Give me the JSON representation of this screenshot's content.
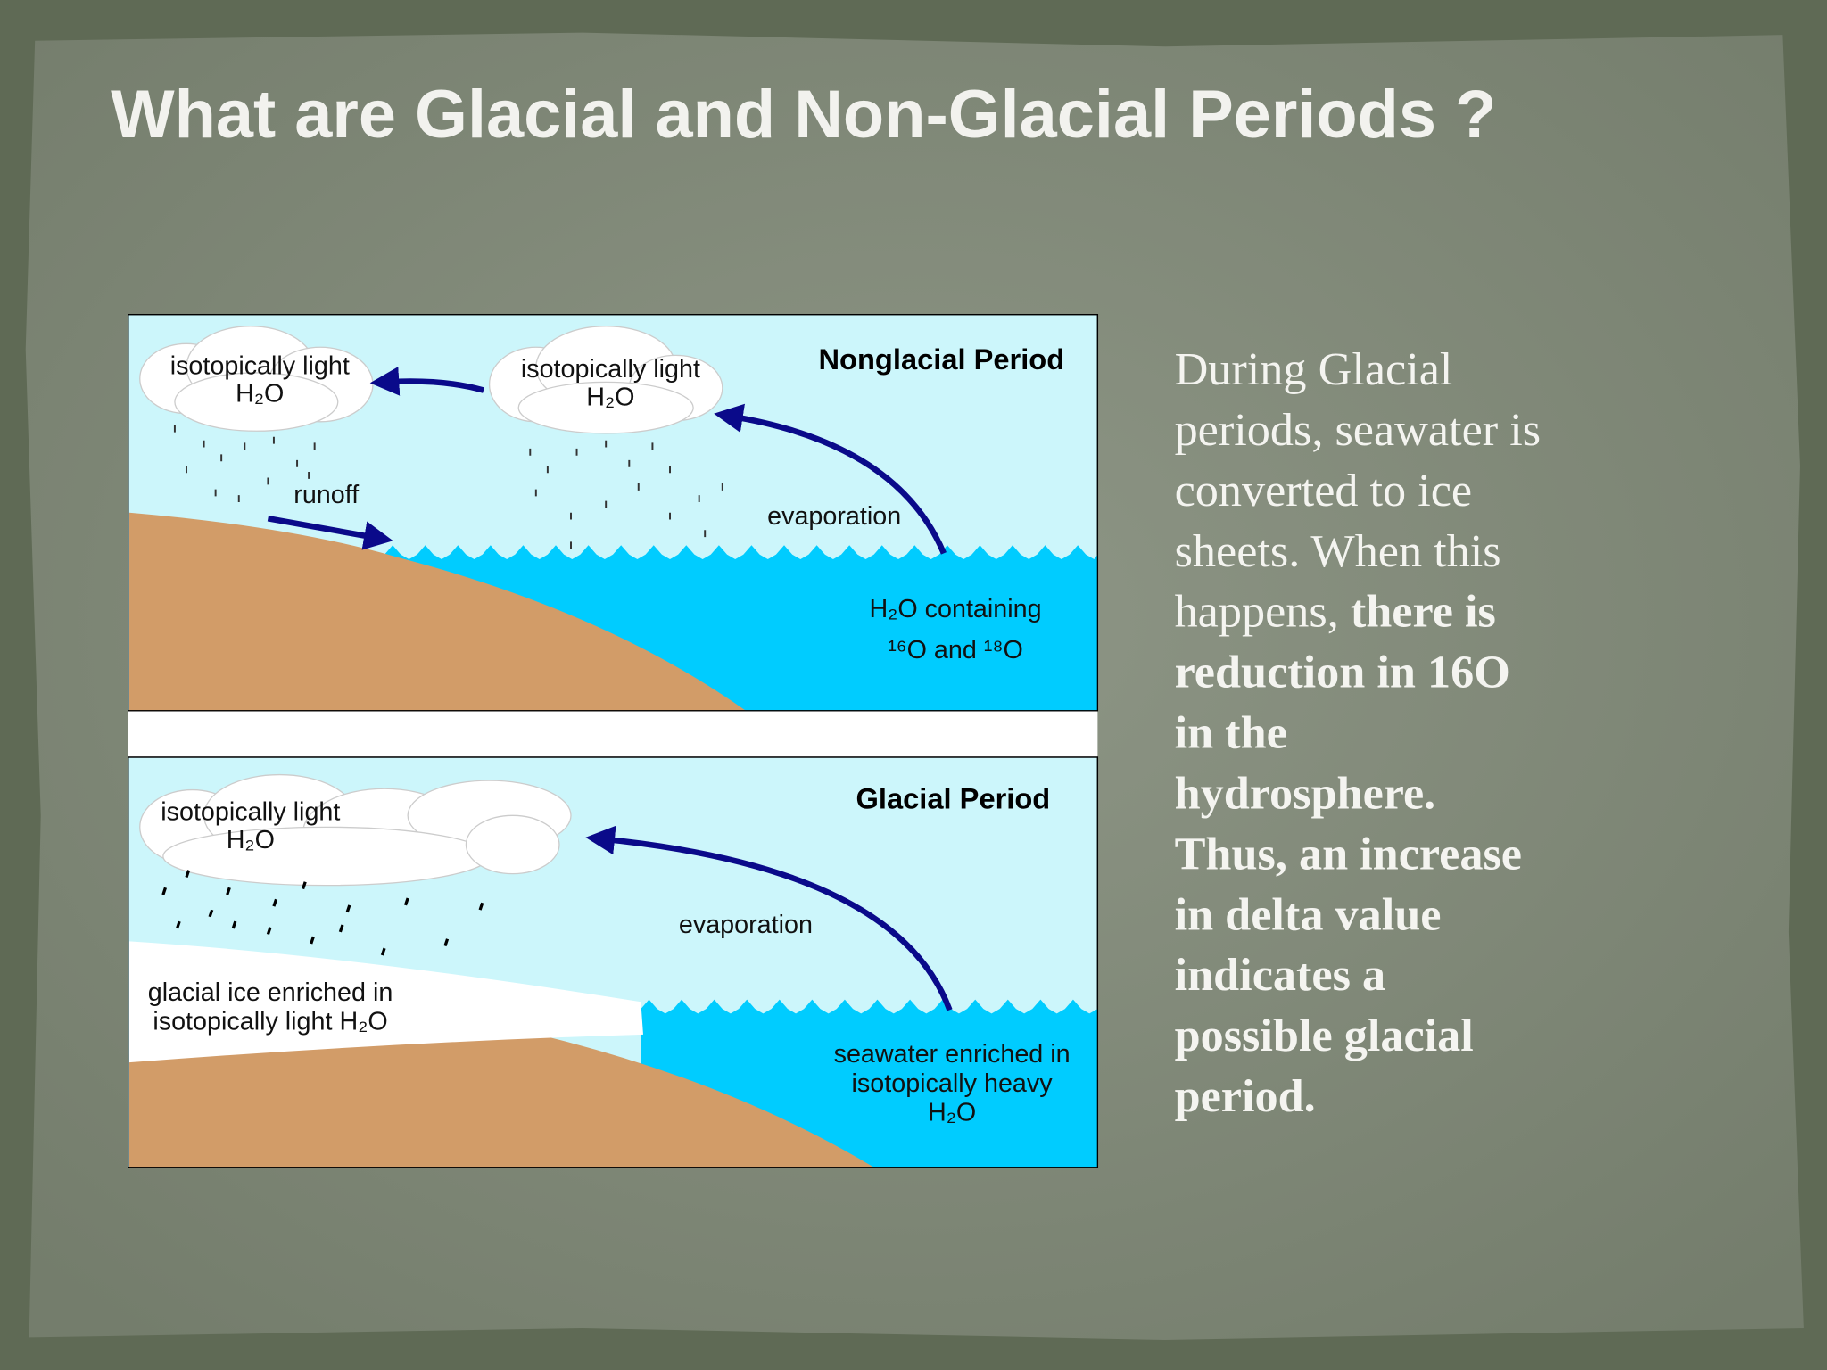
{
  "title": "What are Glacial and Non-Glacial Periods ?",
  "diagram": {
    "panels": [
      {
        "title": "Nonglacial Period",
        "labels": [
          "isotopically light",
          "H₂O",
          "isotopically light",
          "H₂O",
          "runoff",
          "evaporation",
          "H₂O containing",
          "¹⁶O and ¹⁸O"
        ]
      },
      {
        "title": "Glacial Period",
        "labels": [
          "isotopically light",
          "H₂O",
          "evaporation",
          "glacial ice enriched in",
          "isotopically light H₂O",
          "seawater enriched in",
          "isotopically heavy",
          "H₂O"
        ]
      }
    ]
  },
  "body": {
    "lines": [
      [
        {
          "text": "During Glacial",
          "bold": false
        }
      ],
      [
        {
          "text": "periods, seawater is",
          "bold": false
        }
      ],
      [
        {
          "text": "converted to ice",
          "bold": false
        }
      ],
      [
        {
          "text": "sheets. When this",
          "bold": false
        }
      ],
      [
        {
          "text": "happens, ",
          "bold": false
        },
        {
          "text": "there is",
          "bold": true
        }
      ],
      [
        {
          "text": "reduction in 16O",
          "bold": true
        }
      ],
      [
        {
          "text": "in the",
          "bold": true
        }
      ],
      [
        {
          "text": "hydrosphere.",
          "bold": true
        }
      ],
      [
        {
          "text": "Thus, an increase",
          "bold": true
        }
      ],
      [
        {
          "text": "in delta value",
          "bold": true
        }
      ],
      [
        {
          "text": "indicates a",
          "bold": true
        }
      ],
      [
        {
          "text": "possible glacial",
          "bold": true
        }
      ],
      [
        {
          "text": "period.",
          "bold": true
        }
      ]
    ]
  }
}
